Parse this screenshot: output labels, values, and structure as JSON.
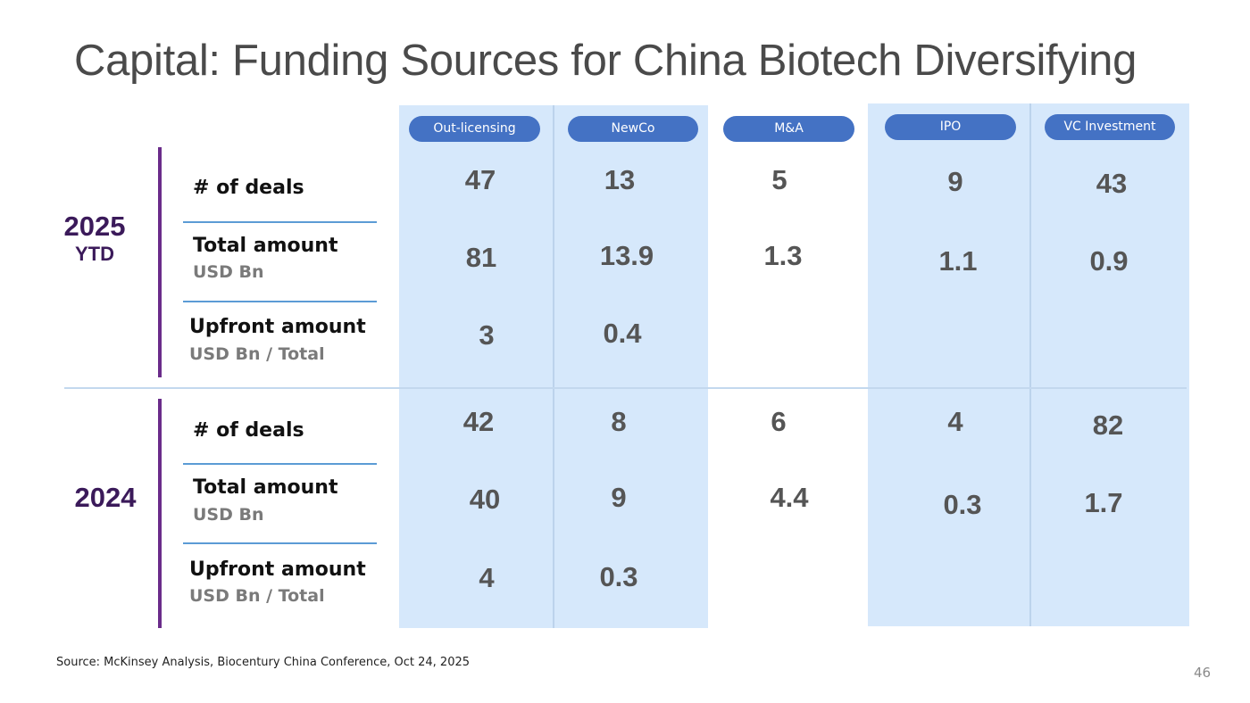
{
  "title": "Capital: Funding Sources for China Biotech Diversifying",
  "columns": [
    {
      "label": "Out-licensing"
    },
    {
      "label": "NewCo"
    },
    {
      "label": "M&A"
    },
    {
      "label": "IPO"
    },
    {
      "label": "VC Investment"
    }
  ],
  "sections": [
    {
      "year": "2025",
      "year_suffix": "YTD",
      "rows": [
        {
          "label": "# of deals",
          "sub": "",
          "values": [
            "47",
            "13",
            "5",
            "9",
            "43"
          ]
        },
        {
          "label": "Total amount",
          "sub": "USD Bn",
          "values": [
            "81",
            "13.9",
            "1.3",
            "1.1",
            "0.9"
          ]
        },
        {
          "label": "Upfront amount",
          "sub": "USD Bn / Total",
          "values": [
            "3",
            "0.4",
            "",
            "",
            ""
          ]
        }
      ]
    },
    {
      "year": "2024",
      "year_suffix": "",
      "rows": [
        {
          "label": "# of deals",
          "sub": "",
          "values": [
            "42",
            "8",
            "6",
            "4",
            "82"
          ]
        },
        {
          "label": "Total amount",
          "sub": "USD Bn",
          "values": [
            "40",
            "9",
            "4.4",
            "0.3",
            "1.7"
          ]
        },
        {
          "label": "Upfront amount",
          "sub": "USD Bn / Total",
          "values": [
            "4",
            "0.3",
            "",
            "",
            ""
          ]
        }
      ]
    }
  ],
  "source": "Source: McKinsey Analysis, Biocentury China Conference, Oct 24, 2025",
  "page_number": "46",
  "colors": {
    "pill": "#4472c4",
    "band": "#d6e8fb",
    "year_text": "#3b1a5a",
    "year_bar": "#6a2c8a",
    "row_divider": "#5b9bd5"
  }
}
